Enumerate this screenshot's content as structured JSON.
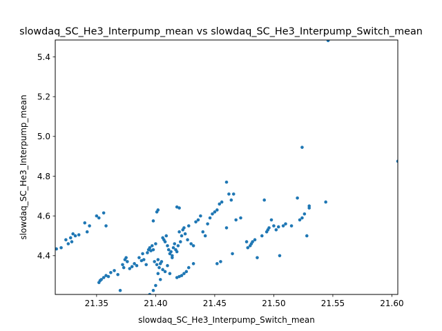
{
  "chart_data": {
    "type": "scatter",
    "title": "slowdaq_SC_He3_Interpump_mean vs slowdaq_SC_He3_Interpump_Switch_mean",
    "xlabel": "slowdaq_SC_He3_Interpump_Switch_mean",
    "ylabel": "slowdaq_SC_He3_Interpump_mean",
    "xlim": [
      21.315,
      21.605
    ],
    "ylim": [
      4.205,
      5.485
    ],
    "xticks": [
      21.35,
      21.4,
      21.45,
      21.5,
      21.55,
      21.6
    ],
    "xtick_labels": [
      "21.35",
      "21.40",
      "21.45",
      "21.50",
      "21.55",
      "21.60"
    ],
    "yticks": [
      4.4,
      4.6,
      4.8,
      5.0,
      5.2,
      5.4
    ],
    "ytick_labels": [
      "4.4",
      "4.6",
      "4.8",
      "5.0",
      "5.2",
      "5.4"
    ],
    "grid": false,
    "marker_color": "#1f77b4",
    "points": [
      [
        21.316,
        4.434
      ],
      [
        21.32,
        4.44
      ],
      [
        21.324,
        4.48
      ],
      [
        21.326,
        4.46
      ],
      [
        21.328,
        4.49
      ],
      [
        21.329,
        4.47
      ],
      [
        21.33,
        4.51
      ],
      [
        21.332,
        4.5
      ],
      [
        21.335,
        4.505
      ],
      [
        21.34,
        4.565
      ],
      [
        21.342,
        4.52
      ],
      [
        21.344,
        4.55
      ],
      [
        21.35,
        4.6
      ],
      [
        21.352,
        4.59
      ],
      [
        21.356,
        4.615
      ],
      [
        21.358,
        4.55
      ],
      [
        21.352,
        4.265
      ],
      [
        21.353,
        4.275
      ],
      [
        21.354,
        4.28
      ],
      [
        21.356,
        4.29
      ],
      [
        21.358,
        4.3
      ],
      [
        21.36,
        4.295
      ],
      [
        21.362,
        4.315
      ],
      [
        21.365,
        4.325
      ],
      [
        21.368,
        4.305
      ],
      [
        21.37,
        4.225
      ],
      [
        21.372,
        4.355
      ],
      [
        21.373,
        4.34
      ],
      [
        21.374,
        4.38
      ],
      [
        21.375,
        4.39
      ],
      [
        21.376,
        4.37
      ],
      [
        21.378,
        4.335
      ],
      [
        21.38,
        4.345
      ],
      [
        21.382,
        4.36
      ],
      [
        21.384,
        4.35
      ],
      [
        21.386,
        4.39
      ],
      [
        21.388,
        4.375
      ],
      [
        21.389,
        4.41
      ],
      [
        21.39,
        4.38
      ],
      [
        21.392,
        4.355
      ],
      [
        21.393,
        4.415
      ],
      [
        21.394,
        4.43
      ],
      [
        21.395,
        4.44
      ],
      [
        21.396,
        4.425
      ],
      [
        21.397,
        4.45
      ],
      [
        21.398,
        4.43
      ],
      [
        21.399,
        4.37
      ],
      [
        21.4,
        4.46
      ],
      [
        21.401,
        4.355
      ],
      [
        21.402,
        4.38
      ],
      [
        21.403,
        4.34
      ],
      [
        21.404,
        4.36
      ],
      [
        21.405,
        4.37
      ],
      [
        21.406,
        4.49
      ],
      [
        21.407,
        4.48
      ],
      [
        21.408,
        4.47
      ],
      [
        21.409,
        4.5
      ],
      [
        21.41,
        4.45
      ],
      [
        21.411,
        4.43
      ],
      [
        21.412,
        4.41
      ],
      [
        21.413,
        4.42
      ],
      [
        21.414,
        4.39
      ],
      [
        21.415,
        4.44
      ],
      [
        21.416,
        4.46
      ],
      [
        21.417,
        4.43
      ],
      [
        21.418,
        4.42
      ],
      [
        21.419,
        4.45
      ],
      [
        21.42,
        4.52
      ],
      [
        21.421,
        4.47
      ],
      [
        21.422,
        4.5
      ],
      [
        21.423,
        4.53
      ],
      [
        21.424,
        4.54
      ],
      [
        21.425,
        4.51
      ],
      [
        21.427,
        4.48
      ],
      [
        21.428,
        4.55
      ],
      [
        21.43,
        4.46
      ],
      [
        21.432,
        4.45
      ],
      [
        21.434,
        4.57
      ],
      [
        21.436,
        4.58
      ],
      [
        21.438,
        4.6
      ],
      [
        21.44,
        4.52
      ],
      [
        21.442,
        4.5
      ],
      [
        21.444,
        4.56
      ],
      [
        21.446,
        4.59
      ],
      [
        21.448,
        4.61
      ],
      [
        21.45,
        4.62
      ],
      [
        21.452,
        4.63
      ],
      [
        21.454,
        4.66
      ],
      [
        21.456,
        4.67
      ],
      [
        21.46,
        4.54
      ],
      [
        21.46,
        4.77
      ],
      [
        21.462,
        4.71
      ],
      [
        21.464,
        4.68
      ],
      [
        21.466,
        4.71
      ],
      [
        21.468,
        4.58
      ],
      [
        21.472,
        4.59
      ],
      [
        21.395,
        4.205
      ],
      [
        21.398,
        4.225
      ],
      [
        21.4,
        4.25
      ],
      [
        21.402,
        4.31
      ],
      [
        21.404,
        4.28
      ],
      [
        21.406,
        4.33
      ],
      [
        21.408,
        4.32
      ],
      [
        21.41,
        4.35
      ],
      [
        21.412,
        4.31
      ],
      [
        21.418,
        4.29
      ],
      [
        21.42,
        4.295
      ],
      [
        21.422,
        4.3
      ],
      [
        21.424,
        4.31
      ],
      [
        21.426,
        4.32
      ],
      [
        21.428,
        4.34
      ],
      [
        21.432,
        4.36
      ],
      [
        21.452,
        4.36
      ],
      [
        21.455,
        4.37
      ],
      [
        21.465,
        4.41
      ],
      [
        21.477,
        4.47
      ],
      [
        21.478,
        4.44
      ],
      [
        21.48,
        4.45
      ],
      [
        21.481,
        4.46
      ],
      [
        21.482,
        4.47
      ],
      [
        21.484,
        4.48
      ],
      [
        21.486,
        4.39
      ],
      [
        21.49,
        4.5
      ],
      [
        21.492,
        4.68
      ],
      [
        21.494,
        4.52
      ],
      [
        21.495,
        4.53
      ],
      [
        21.496,
        4.54
      ],
      [
        21.498,
        4.58
      ],
      [
        21.5,
        4.55
      ],
      [
        21.502,
        4.53
      ],
      [
        21.504,
        4.545
      ],
      [
        21.505,
        4.4
      ],
      [
        21.508,
        4.55
      ],
      [
        21.51,
        4.56
      ],
      [
        21.515,
        4.55
      ],
      [
        21.52,
        4.69
      ],
      [
        21.522,
        4.58
      ],
      [
        21.524,
        4.59
      ],
      [
        21.526,
        4.61
      ],
      [
        21.528,
        4.5
      ],
      [
        21.53,
        4.64
      ],
      [
        21.53,
        4.65
      ],
      [
        21.544,
        4.67
      ],
      [
        21.524,
        4.945
      ],
      [
        21.546,
        5.482
      ],
      [
        21.605,
        4.875
      ],
      [
        21.398,
        4.575
      ],
      [
        21.401,
        4.62
      ],
      [
        21.402,
        4.63
      ],
      [
        21.418,
        4.645
      ],
      [
        21.42,
        4.64
      ],
      [
        21.414,
        4.4
      ]
    ]
  }
}
